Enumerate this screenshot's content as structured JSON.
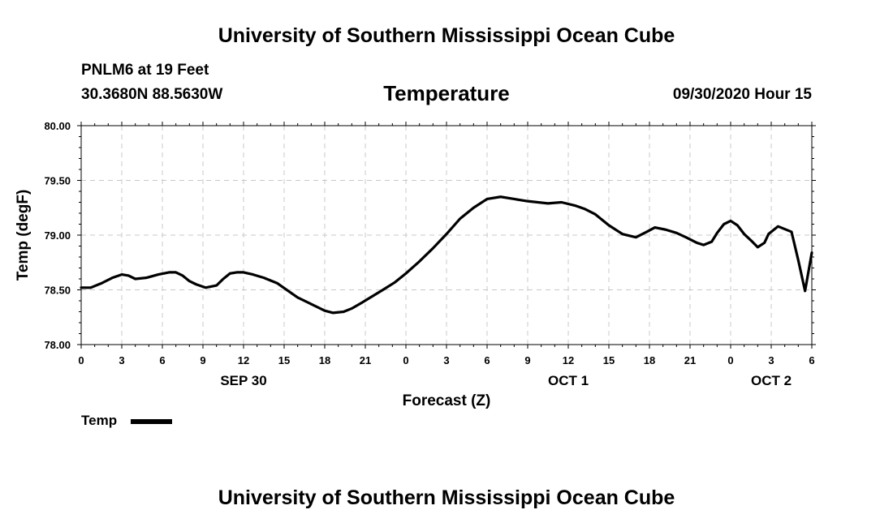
{
  "header": {
    "top_title": "University of Southern Mississippi Ocean Cube",
    "station": "PNLM6 at 19 Feet",
    "coords": "30.3680N 88.5630W",
    "chart_title": "Temperature",
    "datetime": "09/30/2020 Hour 15"
  },
  "footer": {
    "bottom_title": "University of Southern Mississippi Ocean Cube"
  },
  "legend": {
    "label": "Temp",
    "color": "#000000"
  },
  "chart_data": {
    "type": "line",
    "title": "Temperature",
    "xlabel": "Forecast (Z)",
    "ylabel": "Temp (degF)",
    "ylim": [
      78.0,
      80.0
    ],
    "xlim": [
      0,
      54
    ],
    "grid": true,
    "y_ticks": [
      "78.00",
      "78.50",
      "79.00",
      "79.50",
      "80.00"
    ],
    "x_tick_labels": [
      "0",
      "3",
      "6",
      "9",
      "12",
      "15",
      "18",
      "21",
      "0",
      "3",
      "6",
      "9",
      "12",
      "15",
      "18",
      "21",
      "0",
      "3",
      "6"
    ],
    "day_labels": [
      {
        "label": "SEP 30",
        "at_hour": 12
      },
      {
        "label": "OCT 1",
        "at_hour": 36
      },
      {
        "label": "OCT 2",
        "at_hour": 51
      }
    ],
    "series": [
      {
        "name": "Temp",
        "x": [
          0,
          0.7,
          1.5,
          2.3,
          3,
          3.5,
          4,
          4.8,
          5.7,
          6.5,
          7,
          7.5,
          8,
          8.5,
          9.2,
          10,
          10.5,
          11,
          11.5,
          12,
          12.7,
          13.5,
          14.5,
          15.3,
          16,
          17,
          18,
          18.6,
          19.4,
          20,
          20.7,
          21.5,
          22.3,
          23.2,
          24,
          25,
          26,
          27,
          28,
          29,
          30,
          31,
          32,
          33,
          34.5,
          35.5,
          36.5,
          37.2,
          38,
          39,
          40,
          41,
          41.8,
          42.4,
          43.2,
          44,
          44.7,
          45.5,
          46,
          46.6,
          47,
          47.5,
          48,
          48.5,
          49,
          49.6,
          50,
          50.5,
          50.8,
          51.5,
          52.5,
          53,
          53.5,
          54
        ],
        "values": [
          78.52,
          78.52,
          78.56,
          78.61,
          78.64,
          78.63,
          78.6,
          78.61,
          78.64,
          78.66,
          78.66,
          78.63,
          78.58,
          78.55,
          78.52,
          78.54,
          78.6,
          78.65,
          78.66,
          78.66,
          78.64,
          78.61,
          78.56,
          78.49,
          78.43,
          78.37,
          78.31,
          78.29,
          78.3,
          78.33,
          78.38,
          78.44,
          78.5,
          78.57,
          78.65,
          78.76,
          78.88,
          79.01,
          79.15,
          79.25,
          79.33,
          79.35,
          79.33,
          79.31,
          79.29,
          79.3,
          79.27,
          79.24,
          79.19,
          79.09,
          79.01,
          78.98,
          79.03,
          79.07,
          79.05,
          79.02,
          78.98,
          78.93,
          78.91,
          78.94,
          79.02,
          79.1,
          79.13,
          79.09,
          79.01,
          78.94,
          78.89,
          78.93,
          79.01,
          79.08,
          79.03,
          78.77,
          78.49,
          78.84
        ]
      }
    ]
  }
}
